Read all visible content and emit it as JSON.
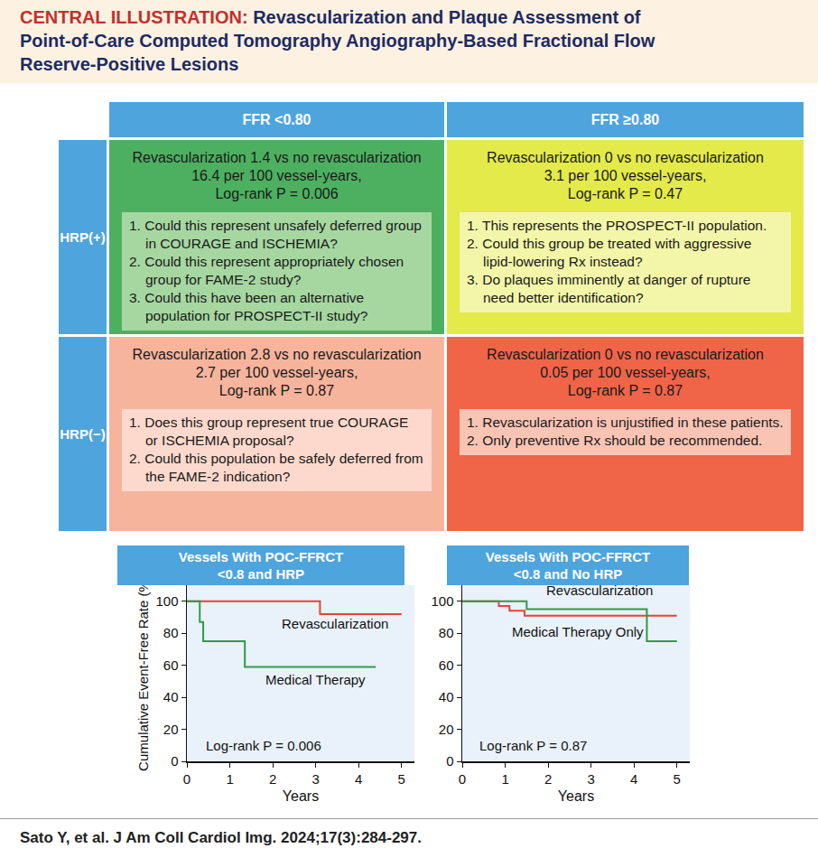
{
  "header": {
    "label": "CENTRAL ILLUSTRATION:",
    "title_lines": [
      "Revascularization and Plaque Assessment of",
      "Point-of-Care Computed Tomography Angiography-Based Fractional Flow",
      "Reserve-Positive Lesions"
    ]
  },
  "table": {
    "columns": [
      "FFR <0.80",
      "FFR ≥0.80"
    ],
    "rows": [
      {
        "label": "HRP(+)",
        "cells": [
          {
            "result": [
              "Revascularization 1.4 vs no revascularization",
              "16.4 per 100 vessel-years,",
              "Log-rank P = 0.006"
            ],
            "questions": [
              "1. Could this represent unsafely deferred group in COURAGE and ISCHEMIA?",
              "2. Could this represent appropriately chosen group for FAME-2 study?",
              "3. Could this have been an alternative population for PROSPECT-II study?"
            ]
          },
          {
            "result": [
              "Revascularization 0 vs no revascularization",
              "3.1 per 100 vessel-years,",
              "Log-rank P = 0.47"
            ],
            "questions": [
              "1. This represents the PROSPECT-II population.",
              "2. Could this group be treated with aggressive lipid-lowering Rx instead?",
              "3. Do plaques imminently at danger of rupture need better identification?"
            ]
          }
        ]
      },
      {
        "label": "HRP(−)",
        "cells": [
          {
            "result": [
              "Revascularization 2.8 vs no revascularization",
              "2.7 per 100 vessel-years,",
              "Log-rank P = 0.87"
            ],
            "questions": [
              "1. Does this group represent true COURAGE or ISCHEMIA proposal?",
              "2. Could this population be safely deferred from the FAME-2 indication?"
            ]
          },
          {
            "result": [
              "Revascularization 0 vs no revascularization",
              "0.05 per 100 vessel-years,",
              "Log-rank P = 0.87"
            ],
            "questions": [
              "1. Revascularization is unjustified in these patients.",
              "2. Only preventive Rx should be recommended."
            ]
          }
        ]
      }
    ]
  },
  "chart_data": [
    {
      "type": "line",
      "line_style": "step",
      "title_lines": [
        "Vessels With POC-FFRCT",
        "<0.8 and HRP"
      ],
      "xlabel": "Years",
      "ylabel": "Cumulative Event-Free Rate (%)",
      "xlim": [
        0,
        5.3
      ],
      "xticks": [
        0,
        1,
        2,
        3,
        4,
        5
      ],
      "ylim": [
        0,
        110
      ],
      "yticks": [
        0,
        20,
        40,
        60,
        80,
        100
      ],
      "grid": false,
      "series": [
        {
          "name": "Revascularization",
          "color": "#e8452f",
          "x": [
            0,
            3.1,
            5
          ],
          "values": [
            100,
            92,
            92
          ]
        },
        {
          "name": "Medical Therapy",
          "color": "#2f9b48",
          "x": [
            0,
            0.3,
            0.38,
            1.35,
            4.4
          ],
          "values": [
            100,
            87,
            75,
            59,
            59
          ]
        }
      ],
      "annotations": [
        "Log-rank P = 0.006"
      ]
    },
    {
      "type": "line",
      "line_style": "step",
      "title_lines": [
        "Vessels With POC-FFRCT",
        "<0.8 and No HRP"
      ],
      "xlabel": "Years",
      "xlim": [
        0,
        5.3
      ],
      "xticks": [
        0,
        1,
        2,
        3,
        4,
        5
      ],
      "ylim": [
        0,
        110
      ],
      "yticks": [
        0,
        20,
        40,
        60,
        80,
        100
      ],
      "grid": false,
      "series": [
        {
          "name": "Revascularization",
          "color": "#e8452f",
          "x": [
            0,
            0.85,
            1.1,
            1.45,
            5
          ],
          "values": [
            100,
            97,
            94,
            91,
            91
          ]
        },
        {
          "name": "Medical Therapy Only",
          "color": "#2f9b48",
          "x": [
            0,
            1.5,
            4.3,
            5
          ],
          "values": [
            100,
            95,
            75,
            75
          ]
        }
      ],
      "annotations": [
        "Log-rank P = 0.87"
      ]
    }
  ],
  "citation": "Sato Y, et al. J Am Coll Cardiol Img. 2024;17(3):284-297."
}
